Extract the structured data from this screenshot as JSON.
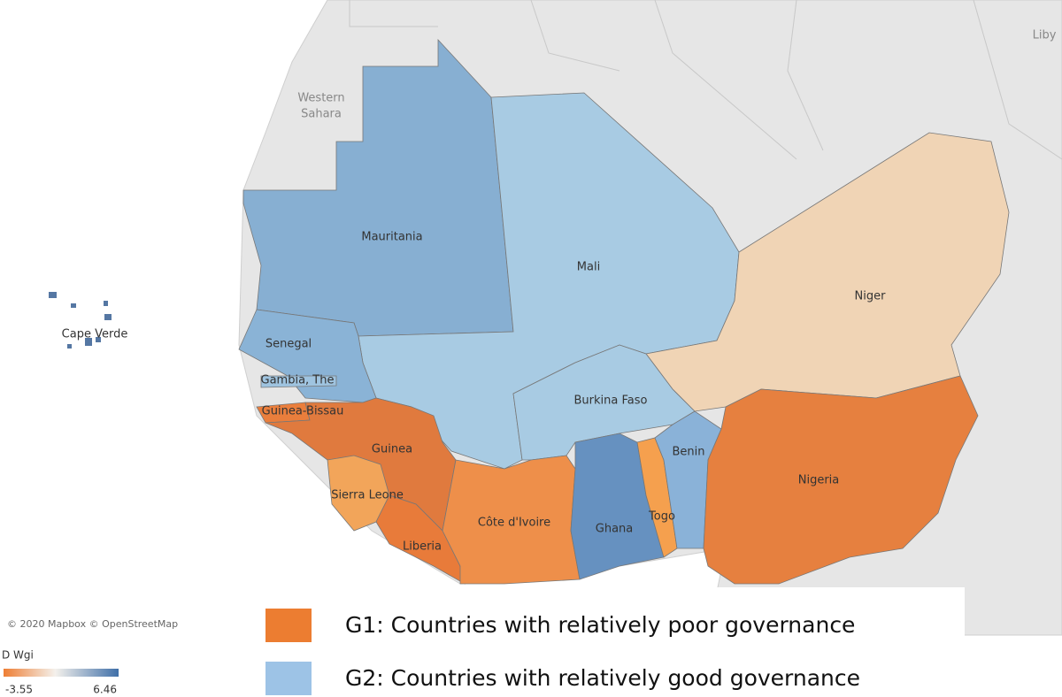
{
  "map": {
    "countries": [
      {
        "name": "Mauritania",
        "color": "#87afd2"
      },
      {
        "name": "Mali",
        "color": "#a8cbe3"
      },
      {
        "name": "Niger",
        "color": "#f0d4b5"
      },
      {
        "name": "Burkina Faso",
        "color": "#a8cbe3"
      },
      {
        "name": "Senegal",
        "color": "#8ab3d6"
      },
      {
        "name": "Gambia, The",
        "color": "#9fc4e0"
      },
      {
        "name": "Guinea-Bissau",
        "color": "#ea7e3c"
      },
      {
        "name": "Guinea",
        "color": "#e07a3e"
      },
      {
        "name": "Sierra Leone",
        "color": "#f2a55a"
      },
      {
        "name": "Liberia",
        "color": "#e87b3a"
      },
      {
        "name": "Côte d'Ivoire",
        "color": "#ee8f4a"
      },
      {
        "name": "Ghana",
        "color": "#6691c0"
      },
      {
        "name": "Togo",
        "color": "#f5a04e"
      },
      {
        "name": "Benin",
        "color": "#8ab2d8"
      },
      {
        "name": "Nigeria",
        "color": "#e6803f"
      },
      {
        "name": "Cape Verde",
        "color": "#5577a3"
      }
    ],
    "background_labels": [
      "Western",
      "Sahara",
      "Liby"
    ],
    "attribution": "© 2020 Mapbox © OpenStreetMap",
    "color_scale": {
      "title": "D Wgi",
      "min": -3.55,
      "max": 6.46,
      "min_color": "#ee7e34",
      "max_color": "#3f6fa8"
    },
    "legend": [
      {
        "name": "G1: Countries with relatively poor governance",
        "color": "#ec7d31"
      },
      {
        "name": "G2: Countries with relatively good governance",
        "color": "#9dc3e6"
      }
    ]
  }
}
